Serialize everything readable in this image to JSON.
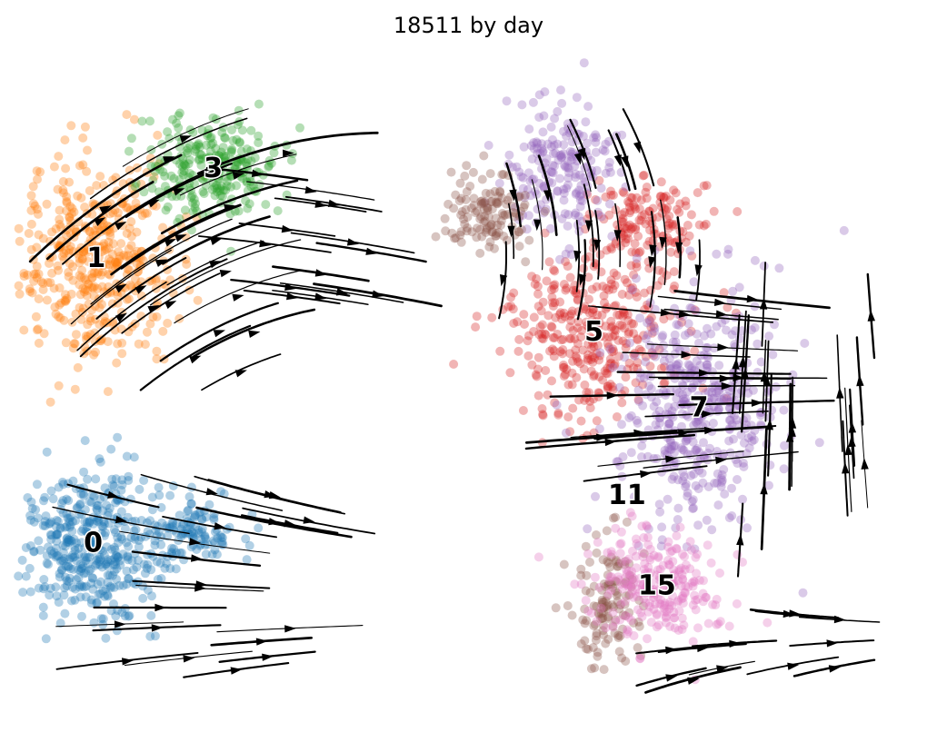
{
  "chart_data": {
    "type": "scatter",
    "title": "18511 by day",
    "description_axes": "none",
    "grid": false,
    "legend": "on data",
    "clusters": [
      {
        "label": "0",
        "color": "#1f77b4",
        "center": [
          -12.5,
          -5.5
        ]
      },
      {
        "label": "1",
        "color": "#ff7f0e",
        "center": [
          -12.4,
          4.6
        ]
      },
      {
        "label": "3",
        "color": "#2ca02c",
        "center": [
          -8.5,
          7.8
        ]
      },
      {
        "label": "5",
        "color": "#d62728",
        "center": [
          4.2,
          2.0
        ]
      },
      {
        "label": "7",
        "color": "#9467bd",
        "center": [
          7.7,
          -0.7
        ]
      },
      {
        "label": "11",
        "color": "#8c564b",
        "center": [
          5.3,
          -3.8
        ]
      },
      {
        "label": "15",
        "color": "#e377c2",
        "center": [
          6.3,
          -7.0
        ]
      }
    ],
    "xlim": [
      -15,
      15
    ],
    "ylim": [
      -12,
      12
    ]
  }
}
